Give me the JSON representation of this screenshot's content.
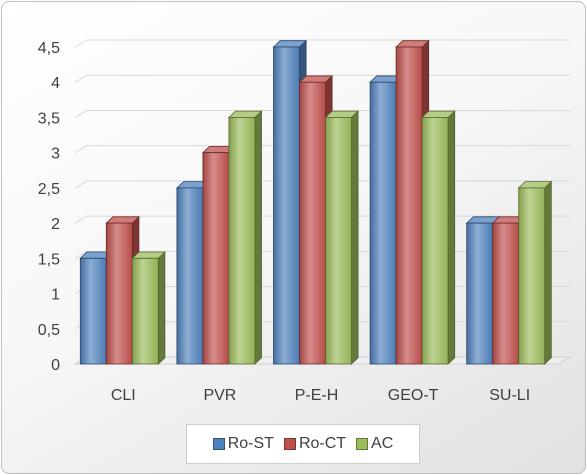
{
  "chart_data": {
    "type": "bar",
    "categories": [
      "CLI",
      "PVR",
      "P-E-H",
      "GEO-T",
      "SU-LI"
    ],
    "series": [
      {
        "name": "Ro-ST",
        "values": [
          1.5,
          2.5,
          4.5,
          4.0,
          2.0
        ],
        "color": "#4f81bd"
      },
      {
        "name": "Ro-CT",
        "values": [
          2.0,
          3.0,
          4.0,
          4.5,
          2.0
        ],
        "color": "#c0504d"
      },
      {
        "name": "AC",
        "values": [
          1.5,
          3.5,
          3.5,
          3.5,
          2.5
        ],
        "color": "#9bbb59"
      }
    ],
    "yticks": [
      "0",
      "0,5",
      "1",
      "1,5",
      "2",
      "2,5",
      "3",
      "3,5",
      "4",
      "4,5"
    ],
    "ylim": [
      0,
      4.5
    ],
    "title": "",
    "xlabel": "",
    "ylabel": "",
    "grid": true,
    "legend": "bottom",
    "style": "3d"
  }
}
